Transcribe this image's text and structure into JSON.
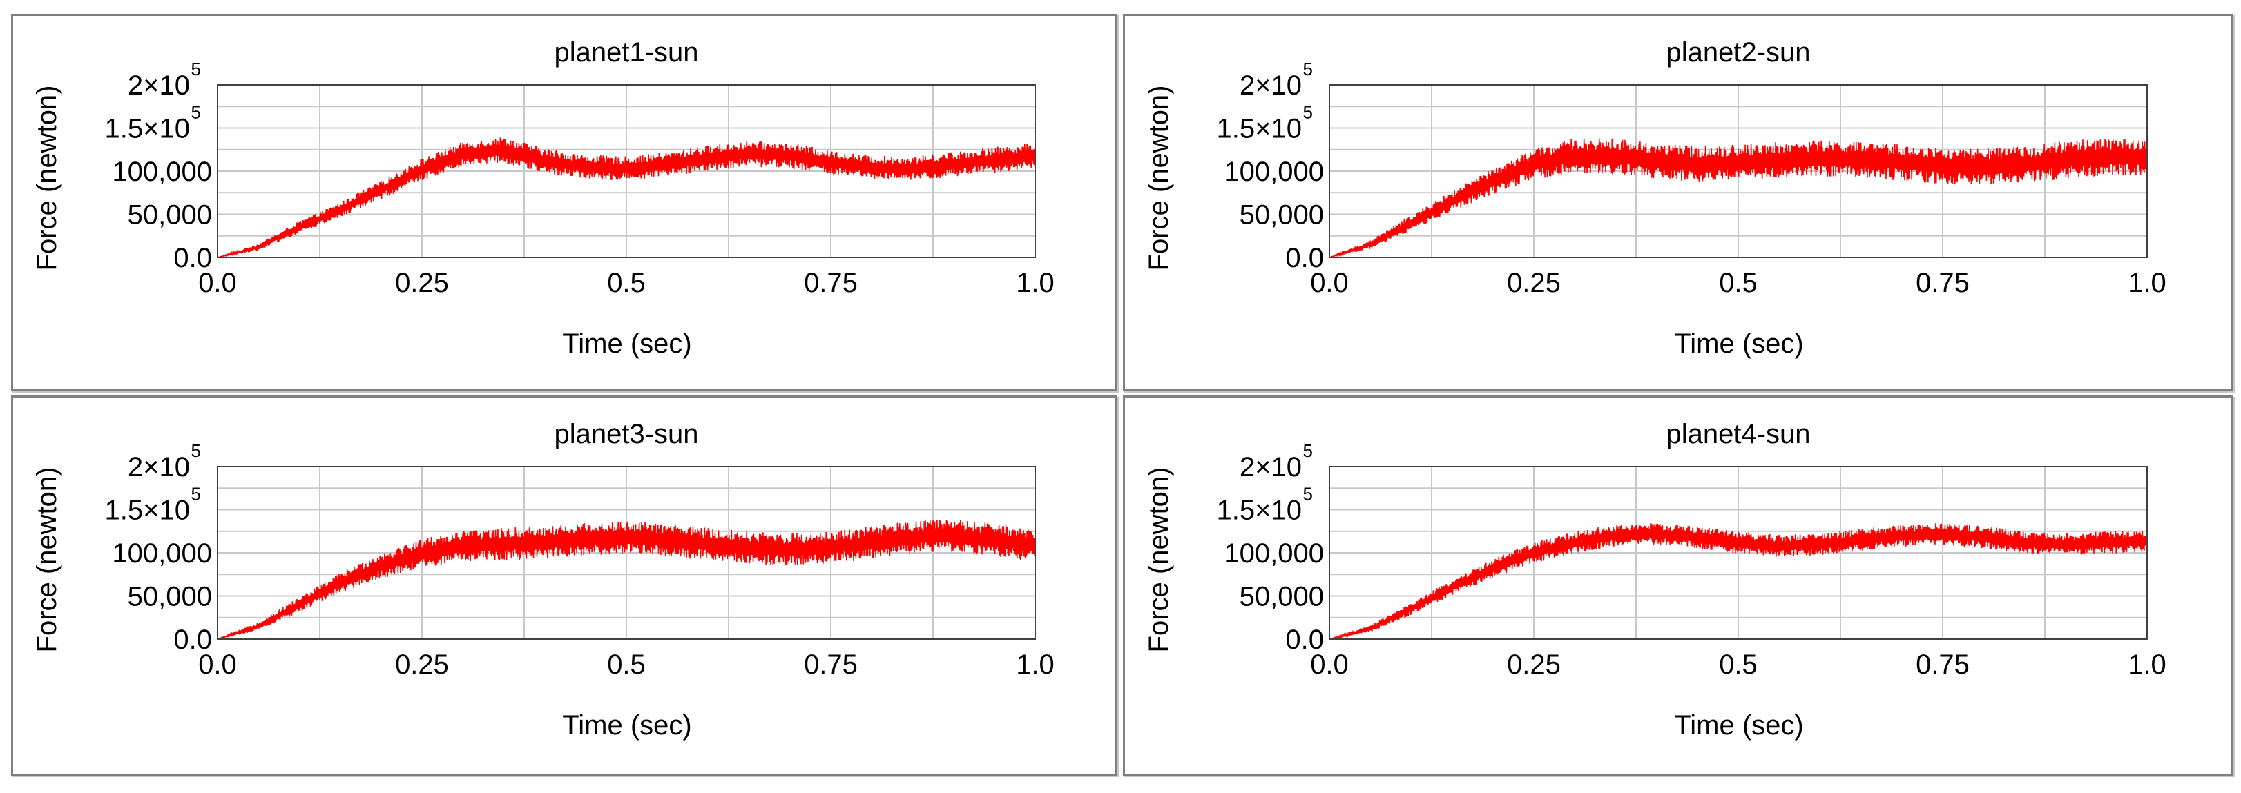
{
  "chart_data": [
    {
      "type": "line",
      "title": "planet1-sun",
      "xlabel": "Time (sec)",
      "ylabel": "Force (newton)",
      "xlim": [
        0.0,
        1.0
      ],
      "ylim": [
        0,
        200000
      ],
      "xticks": [
        "0.0",
        "0.25",
        "0.5",
        "0.75",
        "1.0"
      ],
      "yticks": [
        {
          "base": "0.0",
          "sup": ""
        },
        {
          "base": "50,000",
          "sup": ""
        },
        {
          "base": "100,000",
          "sup": ""
        },
        {
          "base": "1.5×10",
          "sup": "5"
        },
        {
          "base": "2×10",
          "sup": "5"
        }
      ],
      "grid": true,
      "series": [
        {
          "name": "planet1-sun",
          "color": "#ff0000",
          "x": [
            0.0,
            0.05,
            0.1,
            0.15,
            0.2,
            0.25,
            0.3,
            0.35,
            0.4,
            0.45,
            0.5,
            0.55,
            0.6,
            0.65,
            0.7,
            0.75,
            0.8,
            0.85,
            0.9,
            0.95,
            1.0
          ],
          "y": [
            0,
            12000,
            35000,
            55000,
            78000,
            102000,
            120000,
            125000,
            112000,
            105000,
            103000,
            108000,
            115000,
            120000,
            118000,
            110000,
            104000,
            103000,
            108000,
            113000,
            118000
          ],
          "noise": [
            0,
            4000,
            7000,
            9000,
            11000,
            13000,
            14000,
            15000,
            15000,
            14000,
            14000,
            14000,
            15000,
            15000,
            15000,
            14000,
            14000,
            14000,
            15000,
            15000,
            15000
          ]
        }
      ]
    },
    {
      "type": "line",
      "title": "planet2-sun",
      "xlabel": "Time (sec)",
      "ylabel": "Force (newton)",
      "xlim": [
        0.0,
        1.0
      ],
      "ylim": [
        0,
        200000
      ],
      "xticks": [
        "0.0",
        "0.25",
        "0.5",
        "0.75",
        "1.0"
      ],
      "yticks": [
        {
          "base": "0.0",
          "sup": ""
        },
        {
          "base": "50,000",
          "sup": ""
        },
        {
          "base": "100,000",
          "sup": ""
        },
        {
          "base": "1.5×10",
          "sup": "5"
        },
        {
          "base": "2×10",
          "sup": "5"
        }
      ],
      "grid": true,
      "series": [
        {
          "name": "planet2-sun",
          "color": "#ff0000",
          "x": [
            0.0,
            0.05,
            0.1,
            0.15,
            0.2,
            0.25,
            0.3,
            0.35,
            0.4,
            0.45,
            0.5,
            0.55,
            0.6,
            0.65,
            0.7,
            0.75,
            0.8,
            0.85,
            0.9,
            0.95,
            1.0
          ],
          "y": [
            0,
            15000,
            40000,
            65000,
            88000,
            108000,
            118000,
            117000,
            112000,
            108000,
            110000,
            113000,
            115000,
            113000,
            110000,
            106000,
            105000,
            108000,
            113000,
            117000,
            115000
          ],
          "noise": [
            0,
            5000,
            9000,
            12000,
            15000,
            18000,
            20000,
            21000,
            21000,
            21000,
            21000,
            21000,
            21000,
            21000,
            21000,
            21000,
            21000,
            21000,
            22000,
            22000,
            22000
          ]
        }
      ]
    },
    {
      "type": "line",
      "title": "planet3-sun",
      "xlabel": "Time (sec)",
      "ylabel": "Force (newton)",
      "xlim": [
        0.0,
        1.0
      ],
      "ylim": [
        0,
        200000
      ],
      "xticks": [
        "0.0",
        "0.25",
        "0.5",
        "0.75",
        "1.0"
      ],
      "yticks": [
        {
          "base": "0.0",
          "sup": ""
        },
        {
          "base": "50,000",
          "sup": ""
        },
        {
          "base": "100,000",
          "sup": ""
        },
        {
          "base": "1.5×10",
          "sup": "5"
        },
        {
          "base": "2×10",
          "sup": "5"
        }
      ],
      "grid": true,
      "series": [
        {
          "name": "planet3-sun",
          "color": "#ff0000",
          "x": [
            0.0,
            0.05,
            0.1,
            0.15,
            0.2,
            0.25,
            0.3,
            0.35,
            0.4,
            0.45,
            0.5,
            0.55,
            0.6,
            0.65,
            0.7,
            0.75,
            0.8,
            0.85,
            0.9,
            0.95,
            1.0
          ],
          "y": [
            0,
            15000,
            40000,
            65000,
            85000,
            100000,
            108000,
            110000,
            112000,
            116000,
            118000,
            115000,
            110000,
            106000,
            104000,
            106000,
            112000,
            118000,
            120000,
            115000,
            108000
          ],
          "noise": [
            0,
            5000,
            9000,
            12000,
            15000,
            17000,
            18000,
            19000,
            19000,
            19000,
            19000,
            19000,
            19000,
            19000,
            19000,
            19000,
            19000,
            19000,
            19000,
            19000,
            19000
          ]
        }
      ]
    },
    {
      "type": "line",
      "title": "planet4-sun",
      "xlabel": "Time (sec)",
      "ylabel": "Force (newton)",
      "xlim": [
        0.0,
        1.0
      ],
      "ylim": [
        0,
        200000
      ],
      "xticks": [
        "0.0",
        "0.25",
        "0.5",
        "0.75",
        "1.0"
      ],
      "yticks": [
        {
          "base": "0.0",
          "sup": ""
        },
        {
          "base": "50,000",
          "sup": ""
        },
        {
          "base": "100,000",
          "sup": ""
        },
        {
          "base": "1.5×10",
          "sup": "5"
        },
        {
          "base": "2×10",
          "sup": "5"
        }
      ],
      "grid": true,
      "series": [
        {
          "name": "planet4-sun",
          "color": "#ff0000",
          "x": [
            0.0,
            0.05,
            0.1,
            0.15,
            0.2,
            0.25,
            0.3,
            0.35,
            0.4,
            0.45,
            0.5,
            0.55,
            0.6,
            0.65,
            0.7,
            0.75,
            0.8,
            0.85,
            0.9,
            0.95,
            1.0
          ],
          "y": [
            0,
            12000,
            35000,
            60000,
            82000,
            100000,
            112000,
            120000,
            122000,
            118000,
            112000,
            108000,
            110000,
            115000,
            120000,
            122000,
            118000,
            112000,
            110000,
            112000,
            114000
          ],
          "noise": [
            0,
            4000,
            7000,
            9000,
            11000,
            12000,
            13000,
            13000,
            13000,
            13000,
            13000,
            13000,
            13000,
            13000,
            13000,
            13000,
            13000,
            13000,
            13000,
            13000,
            13000
          ]
        }
      ]
    }
  ]
}
